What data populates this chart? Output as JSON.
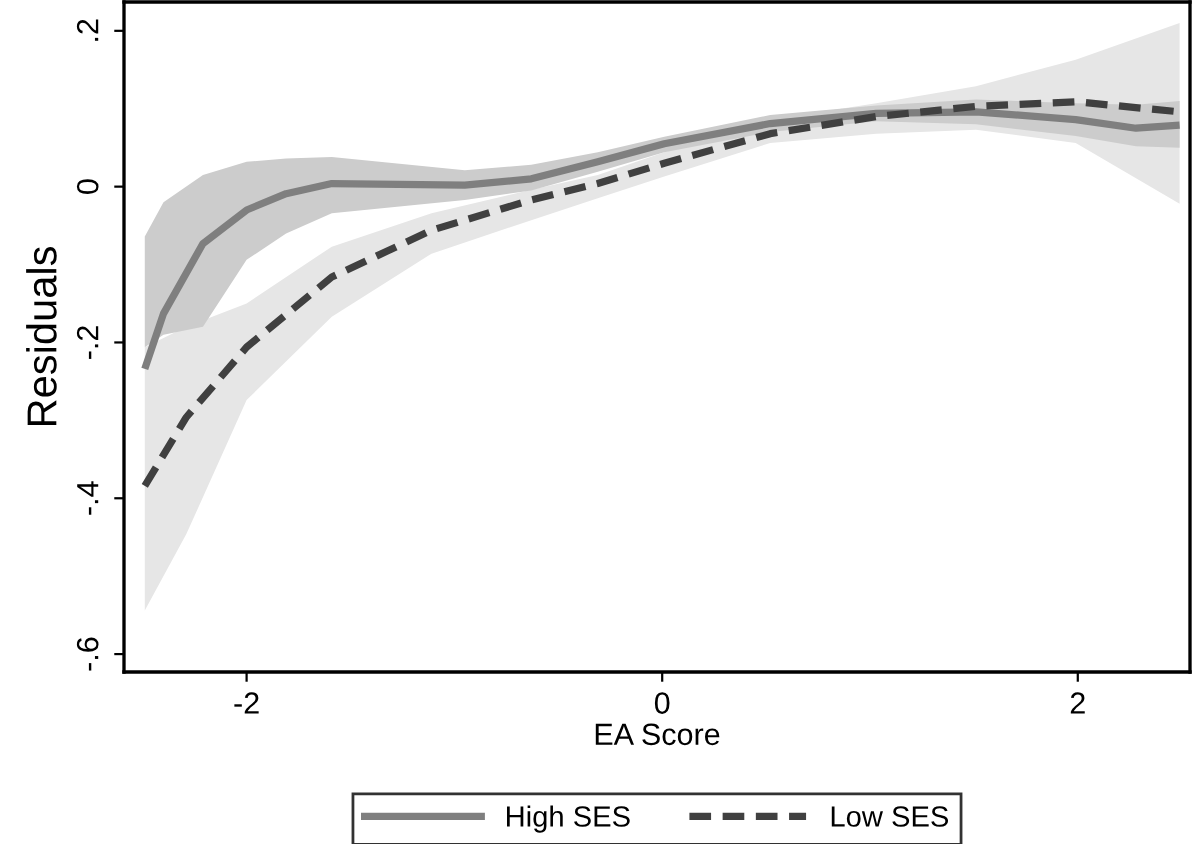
{
  "chart_data": {
    "type": "line",
    "xlabel": "EA Score",
    "ylabel": "Residuals",
    "xlim": [
      -2.59,
      2.54
    ],
    "ylim": [
      -0.623,
      0.237
    ],
    "xticks": [
      -2,
      0,
      2
    ],
    "yticks": [
      {
        "value": -0.6,
        "label": "-.6"
      },
      {
        "value": -0.4,
        "label": "-.4"
      },
      {
        "value": -0.2,
        "label": "-.2"
      },
      0,
      {
        "value": 0.2,
        "label": ".2"
      }
    ],
    "grid": false,
    "legend": "bottom",
    "marker": "none",
    "series": [
      {
        "name": "High SES",
        "color": "#7f7f7f",
        "line_style": "solid",
        "x": [
          -2.49,
          -2.4,
          -2.21,
          -2.0,
          -1.81,
          -1.59,
          -0.95,
          -0.63,
          -0.31,
          0.01,
          0.52,
          1.03,
          1.51,
          1.99,
          2.28,
          2.49
        ],
        "values": [
          -0.234,
          -0.163,
          -0.073,
          -0.03,
          -0.009,
          0.004,
          0.002,
          0.01,
          0.032,
          0.055,
          0.081,
          0.094,
          0.096,
          0.086,
          0.075,
          0.079
        ],
        "upper": [
          -0.064,
          -0.02,
          0.015,
          0.032,
          0.036,
          0.038,
          0.021,
          0.028,
          0.044,
          0.064,
          0.092,
          0.104,
          0.112,
          0.107,
          0.105,
          0.11
        ],
        "lower": [
          -0.206,
          -0.19,
          -0.18,
          -0.094,
          -0.06,
          -0.034,
          -0.017,
          -0.005,
          0.019,
          0.044,
          0.07,
          0.084,
          0.08,
          0.065,
          0.052,
          0.05
        ]
      },
      {
        "name": "Low SES",
        "color": "#404040",
        "line_style": "dashed",
        "x": [
          -2.49,
          -2.29,
          -2.0,
          -1.59,
          -1.11,
          -0.63,
          -0.31,
          0.01,
          0.52,
          1.03,
          1.51,
          1.99,
          2.49
        ],
        "values": [
          -0.384,
          -0.296,
          -0.206,
          -0.116,
          -0.056,
          -0.017,
          0.004,
          0.03,
          0.068,
          0.09,
          0.103,
          0.109,
          0.096
        ],
        "upper": [
          -0.206,
          -0.18,
          -0.15,
          -0.077,
          -0.034,
          -0.004,
          0.015,
          0.044,
          0.086,
          0.107,
          0.129,
          0.163,
          0.21
        ],
        "lower": [
          -0.544,
          -0.446,
          -0.274,
          -0.167,
          -0.086,
          -0.043,
          -0.015,
          0.013,
          0.056,
          0.068,
          0.073,
          0.056,
          -0.022
        ]
      }
    ]
  }
}
